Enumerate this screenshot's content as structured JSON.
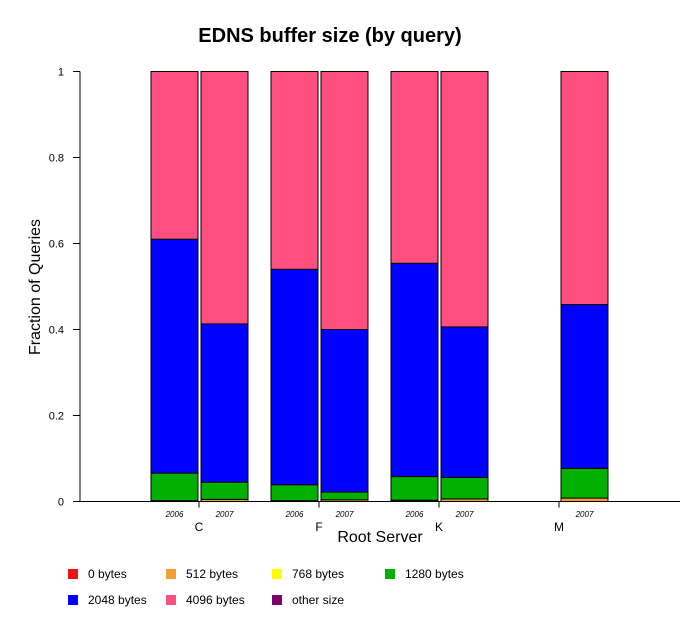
{
  "chart_data": {
    "type": "bar",
    "stacked": true,
    "title": "EDNS buffer size (by query)",
    "xlabel": "Root Server",
    "ylabel": "Fraction of Queries",
    "ylim": [
      0,
      1
    ],
    "yticks": [
      "0",
      "0.2",
      "0.4",
      "0.6",
      "0.8",
      "1"
    ],
    "servers": [
      "C",
      "F",
      "K",
      "M"
    ],
    "bars": [
      {
        "server": "C",
        "year": "2006",
        "values": [
          0.0,
          0.002,
          0.0,
          0.064,
          0.544,
          0.39,
          0.0
        ]
      },
      {
        "server": "C",
        "year": "2007",
        "values": [
          0.0,
          0.005,
          0.0,
          0.04,
          0.368,
          0.587,
          0.0
        ]
      },
      {
        "server": "F",
        "year": "2006",
        "values": [
          0.0,
          0.002,
          0.0,
          0.037,
          0.501,
          0.46,
          0.0
        ]
      },
      {
        "server": "F",
        "year": "2007",
        "values": [
          0.0,
          0.004,
          0.0,
          0.018,
          0.378,
          0.6,
          0.0
        ]
      },
      {
        "server": "K",
        "year": "2006",
        "values": [
          0.002,
          0.001,
          0.0,
          0.055,
          0.496,
          0.446,
          0.0
        ]
      },
      {
        "server": "K",
        "year": "2007",
        "values": [
          0.0,
          0.006,
          0.0,
          0.05,
          0.35,
          0.594,
          0.0
        ]
      },
      {
        "server": "M",
        "year": "2007",
        "values": [
          0.0,
          0.008,
          0.0,
          0.069,
          0.381,
          0.542,
          0.0
        ]
      }
    ],
    "series": [
      {
        "name": "0 bytes",
        "color": "#ee1111"
      },
      {
        "name": "512 bytes",
        "color": "#f4a030"
      },
      {
        "name": "768 bytes",
        "color": "#ffff00"
      },
      {
        "name": "1280 bytes",
        "color": "#00b000"
      },
      {
        "name": "2048 bytes",
        "color": "#0000ff"
      },
      {
        "name": "4096 bytes",
        "color": "#ff4f80"
      },
      {
        "name": "other size",
        "color": "#800070"
      }
    ],
    "legend_position": "bottom",
    "grid": false
  }
}
